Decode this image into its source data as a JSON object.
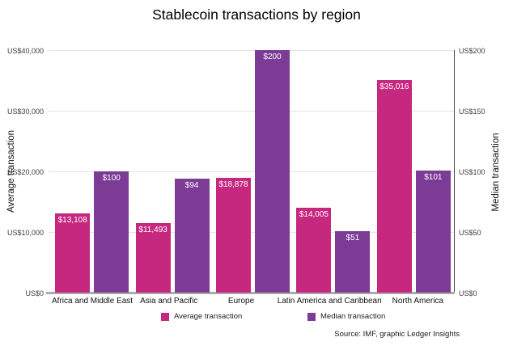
{
  "title": "Stablecoin transactions by region",
  "source": "Source: IMF, graphic Ledger Insights",
  "axes": {
    "left_title": "Average transaction",
    "right_title": "Median transaction",
    "left_ticks": [
      "US$40,000",
      "US$30,000",
      "US$20,000",
      "US$10,000",
      "US$0"
    ],
    "right_ticks": [
      "US$200",
      "US$150",
      "US$100",
      "US$50",
      "US$0"
    ]
  },
  "chart_data": {
    "type": "bar",
    "categories": [
      "Africa and Middle East",
      "Asia and Pacific",
      "Europe",
      "Latin America and Caribbean",
      "North America"
    ],
    "series": [
      {
        "name": "Average transaction",
        "axis": "left",
        "color": "#C7287F",
        "values": [
          13108,
          11493,
          18878,
          14005,
          35016
        ],
        "labels": [
          "$13,108",
          "$11,493",
          "$18,878",
          "$14,005",
          "$35,016"
        ]
      },
      {
        "name": "Median transaction",
        "axis": "right",
        "color": "#7C3C96",
        "values": [
          100,
          94,
          200,
          51,
          101
        ],
        "labels": [
          "$100",
          "$94",
          "$200",
          "$51",
          "$101"
        ]
      }
    ],
    "left_axis": {
      "label": "Average transaction",
      "range": [
        0,
        40000
      ]
    },
    "right_axis": {
      "label": "Median transaction",
      "range": [
        0,
        200
      ]
    },
    "grid": true,
    "legend_position": "bottom",
    "title": "Stablecoin transactions by region"
  }
}
